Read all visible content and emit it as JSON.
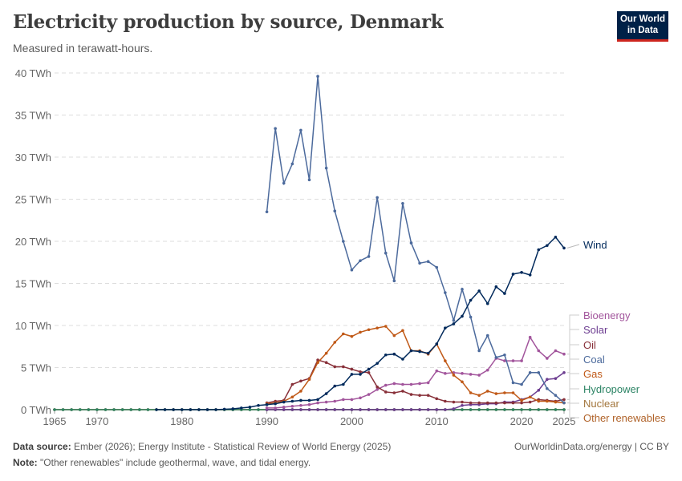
{
  "header": {
    "title": "Electricity production by source, Denmark",
    "subtitle": "Measured in terawatt-hours.",
    "logo": "Our World in Data"
  },
  "footer": {
    "source_label": "Data source:",
    "source": "Ember (2026); Energy Institute - Statistical Review of World Energy (2025)",
    "url": "OurWorldinData.org/energy | CC BY",
    "note_label": "Note:",
    "note": "\"Other renewables\" include geothermal, wave, and tidal energy."
  },
  "chart_data": {
    "type": "line",
    "title": "Electricity production by source, Denmark",
    "ylabel": "",
    "xlim": [
      1965,
      2025
    ],
    "ylim": [
      0,
      40
    ],
    "y_ticks": [
      0,
      5,
      10,
      15,
      20,
      25,
      30,
      35,
      40
    ],
    "y_tick_labels": [
      "0 TWh",
      "5 TWh",
      "10 TWh",
      "15 TWh",
      "20 TWh",
      "25 TWh",
      "30 TWh",
      "35 TWh",
      "40 TWh"
    ],
    "x_ticks": [
      1965,
      1970,
      1980,
      1990,
      2000,
      2010,
      2020,
      2025
    ],
    "x_tick_labels": [
      "1965",
      "1970",
      "1980",
      "1990",
      "2000",
      "2010",
      "2020",
      "2025"
    ],
    "grid": "horizontal dashed",
    "legend": "right, labels at line ends",
    "series": [
      {
        "name": "Wind",
        "color": "#00295b",
        "start": 1977,
        "values": [
          0,
          0,
          0,
          0,
          0,
          0,
          0,
          0,
          0.05,
          0.1,
          0.2,
          0.3,
          0.5,
          0.6,
          0.7,
          0.9,
          1.0,
          1.1,
          1.1,
          1.2,
          1.9,
          2.8,
          3.0,
          4.2,
          4.2,
          4.8,
          5.5,
          6.5,
          6.6,
          6.0,
          7.0,
          6.9,
          6.7,
          7.8,
          9.7,
          10.2,
          11.1,
          13.0,
          14.1,
          12.6,
          14.6,
          13.8,
          16.1,
          16.3,
          16.0,
          19.0,
          19.5,
          20.5,
          19.2
        ]
      },
      {
        "name": "Bioenergy",
        "color": "#a2559c",
        "start": 1990,
        "values": [
          0.2,
          0.2,
          0.3,
          0.4,
          0.5,
          0.6,
          0.8,
          0.9,
          1.0,
          1.2,
          1.2,
          1.4,
          1.8,
          2.4,
          2.9,
          3.1,
          3.0,
          3.0,
          3.1,
          3.2,
          4.6,
          4.3,
          4.4,
          4.3,
          4.2,
          4.1,
          4.7,
          6.1,
          5.8,
          5.8,
          5.8,
          8.6,
          7.0,
          6.1,
          7.0,
          6.6
        ]
      },
      {
        "name": "Solar",
        "color": "#6d3e91",
        "start": 1990,
        "values": [
          0,
          0,
          0,
          0,
          0,
          0,
          0,
          0,
          0,
          0,
          0,
          0,
          0,
          0,
          0,
          0,
          0,
          0,
          0,
          0,
          0,
          0,
          0.1,
          0.5,
          0.6,
          0.6,
          0.7,
          0.7,
          0.9,
          0.9,
          1.2,
          1.5,
          2.3,
          3.6,
          3.7,
          4.4
        ]
      },
      {
        "name": "Oil",
        "color": "#883039",
        "start": 1990,
        "values": [
          0.8,
          1.0,
          1.1,
          3.0,
          3.4,
          3.7,
          5.9,
          5.6,
          5.1,
          5.1,
          4.8,
          4.5,
          4.4,
          2.7,
          2.1,
          2.0,
          2.2,
          1.8,
          1.7,
          1.7,
          1.3,
          1.0,
          0.9,
          0.9,
          0.8,
          0.8,
          0.8,
          0.8,
          0.8,
          0.8,
          0.8,
          0.9,
          1.2,
          1.1,
          1.0,
          1.2
        ]
      },
      {
        "name": "Coal",
        "color": "#4c6a9c",
        "start": 1990,
        "values": [
          23.5,
          33.4,
          26.9,
          29.2,
          33.2,
          27.3,
          39.6,
          28.7,
          23.6,
          20.0,
          16.6,
          17.7,
          18.2,
          25.2,
          18.6,
          15.3,
          24.5,
          19.8,
          17.4,
          17.6,
          16.9,
          13.9,
          10.6,
          14.3,
          11.0,
          7.0,
          8.8,
          6.2,
          6.5,
          3.2,
          3.0,
          4.4,
          4.4,
          2.5,
          1.7,
          0.8
        ]
      },
      {
        "name": "Gas",
        "color": "#c05917",
        "start": 1990,
        "values": [
          0.7,
          0.8,
          1.0,
          1.5,
          2.2,
          3.6,
          5.6,
          6.7,
          8.0,
          9.0,
          8.7,
          9.2,
          9.5,
          9.7,
          9.9,
          8.8,
          9.4,
          7.0,
          7.0,
          6.6,
          7.8,
          5.8,
          4.1,
          3.3,
          2.0,
          1.7,
          2.2,
          1.9,
          2.0,
          2.0,
          1.1,
          1.5,
          1.0,
          1.0,
          0.9,
          0.8
        ]
      },
      {
        "name": "Hydropower",
        "color": "#2c8465",
        "start": 1965,
        "values": [
          0,
          0,
          0,
          0,
          0,
          0,
          0,
          0,
          0,
          0,
          0,
          0,
          0,
          0,
          0,
          0,
          0,
          0,
          0,
          0,
          0,
          0,
          0,
          0,
          0,
          0,
          0,
          0,
          0,
          0,
          0,
          0,
          0,
          0,
          0,
          0,
          0,
          0,
          0,
          0,
          0,
          0,
          0,
          0,
          0,
          0,
          0,
          0,
          0,
          0,
          0,
          0,
          0,
          0,
          0,
          0,
          0,
          0,
          0,
          0,
          0
        ]
      },
      {
        "name": "Nuclear",
        "color": "#a2753b",
        "start": 1965,
        "values": [
          0,
          0,
          0,
          0,
          0,
          0,
          0,
          0,
          0,
          0,
          0,
          0,
          0,
          0,
          0,
          0,
          0,
          0,
          0,
          0,
          0,
          0,
          0,
          0,
          0,
          0,
          0,
          0,
          0,
          0,
          0,
          0,
          0,
          0,
          0,
          0,
          0,
          0,
          0,
          0,
          0,
          0,
          0,
          0,
          0,
          0,
          0,
          0,
          0,
          0,
          0,
          0,
          0,
          0,
          0,
          0,
          0,
          0,
          0,
          0,
          0
        ]
      },
      {
        "name": "Other renewables",
        "color": "#b0632a",
        "start": 1965,
        "values": [
          0,
          0,
          0,
          0,
          0,
          0,
          0,
          0,
          0,
          0,
          0,
          0,
          0,
          0,
          0,
          0,
          0,
          0,
          0,
          0,
          0,
          0,
          0,
          0,
          0,
          0,
          0,
          0,
          0,
          0,
          0,
          0,
          0,
          0,
          0,
          0,
          0,
          0,
          0,
          0,
          0,
          0,
          0,
          0,
          0,
          0,
          0,
          0,
          0,
          0,
          0,
          0,
          0,
          0,
          0,
          0,
          0,
          0,
          0,
          0,
          0
        ]
      }
    ]
  }
}
